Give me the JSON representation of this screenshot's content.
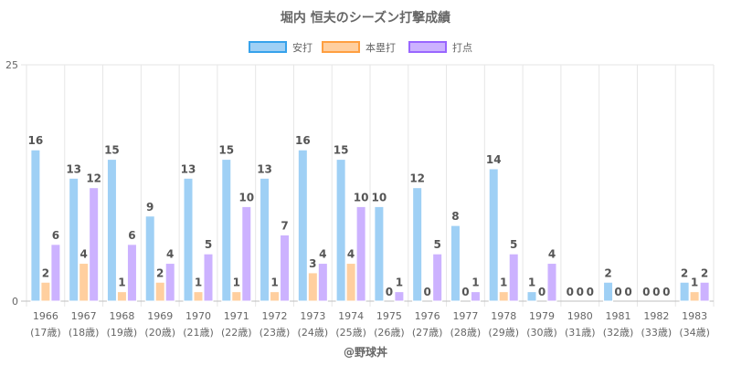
{
  "chart_data": {
    "type": "bar",
    "title": "堀内 恒夫のシーズン打撃成績",
    "categories": [
      "1966",
      "1967",
      "1968",
      "1969",
      "1970",
      "1971",
      "1972",
      "1973",
      "1974",
      "1975",
      "1976",
      "1977",
      "1978",
      "1979",
      "1980",
      "1981",
      "1982",
      "1983"
    ],
    "category_sublabels": [
      "(17歳)",
      "(18歳)",
      "(19歳)",
      "(20歳)",
      "(21歳)",
      "(22歳)",
      "(23歳)",
      "(24歳)",
      "(25歳)",
      "(26歳)",
      "(27歳)",
      "(28歳)",
      "(29歳)",
      "(30歳)",
      "(31歳)",
      "(32歳)",
      "(33歳)",
      "(34歳)"
    ],
    "series": [
      {
        "name": "安打",
        "fill": "#9fd0f5",
        "border": "#36a2eb",
        "values": [
          16,
          13,
          15,
          9,
          13,
          15,
          13,
          16,
          15,
          10,
          12,
          8,
          14,
          1,
          0,
          2,
          0,
          2
        ]
      },
      {
        "name": "本塁打",
        "fill": "#ffcf9f",
        "border": "#ff9f40",
        "values": [
          2,
          4,
          1,
          2,
          1,
          1,
          1,
          3,
          4,
          0,
          0,
          0,
          1,
          0,
          0,
          0,
          0,
          1
        ]
      },
      {
        "name": "打点",
        "fill": "#ccb2ff",
        "border": "#9966ff",
        "values": [
          6,
          12,
          6,
          4,
          5,
          10,
          7,
          4,
          10,
          1,
          5,
          1,
          5,
          4,
          0,
          0,
          0,
          2
        ]
      }
    ],
    "xlabel": "",
    "ylabel": "",
    "ylim": [
      0,
      25
    ],
    "yticks": [
      "0",
      "25"
    ],
    "grid": true,
    "legend": "top-center",
    "credit": "@野球丼"
  }
}
